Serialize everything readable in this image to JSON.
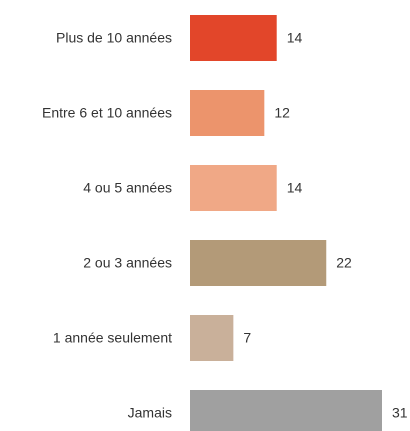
{
  "chart_data": {
    "type": "bar",
    "orientation": "horizontal",
    "categories": [
      "Plus de 10 années",
      "Entre 6 et 10 années",
      "4 ou 5 années",
      "2 ou 3 années",
      "1 année seulement",
      "Jamais"
    ],
    "values": [
      14,
      12,
      14,
      22,
      7,
      31
    ],
    "colors": [
      "#e2462a",
      "#ec946c",
      "#f0a886",
      "#b39a78",
      "#c9b09a",
      "#a0a0a0"
    ],
    "xlim": [
      0,
      31
    ]
  }
}
